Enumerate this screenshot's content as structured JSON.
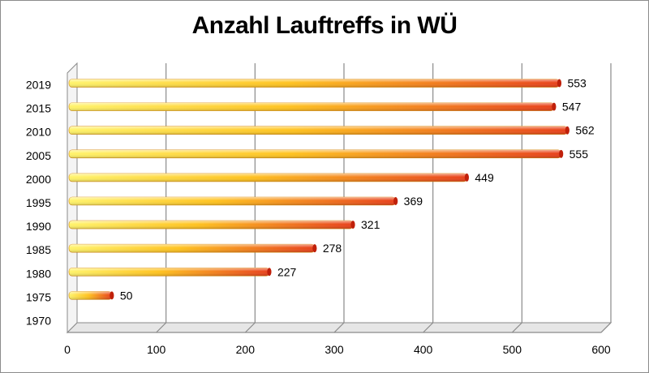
{
  "chart_data": {
    "type": "bar",
    "orientation": "horizontal",
    "title": "Anzahl Lauftreffs in WÜ",
    "xlabel": "",
    "ylabel": "",
    "categories": [
      "1970",
      "1975",
      "1980",
      "1985",
      "1990",
      "1995",
      "2000",
      "2005",
      "2010",
      "2015",
      "2019"
    ],
    "values": [
      null,
      50,
      227,
      278,
      321,
      369,
      449,
      555,
      562,
      547,
      553
    ],
    "data_labels": [
      "",
      "50",
      "227",
      "278",
      "321",
      "369",
      "449",
      "555",
      "562",
      "547",
      "553"
    ],
    "xlim": [
      0,
      600
    ],
    "xticks": [
      "0",
      "100",
      "200",
      "300",
      "400",
      "500",
      "600"
    ],
    "grid": "vertical",
    "legend": "none",
    "colors": {
      "bar_start": "#ffe94a",
      "bar_end": "#e8401a",
      "bar_cap": "#c0200a",
      "gridline": "#8a8a8a",
      "floor": "#e6e6e6"
    }
  }
}
